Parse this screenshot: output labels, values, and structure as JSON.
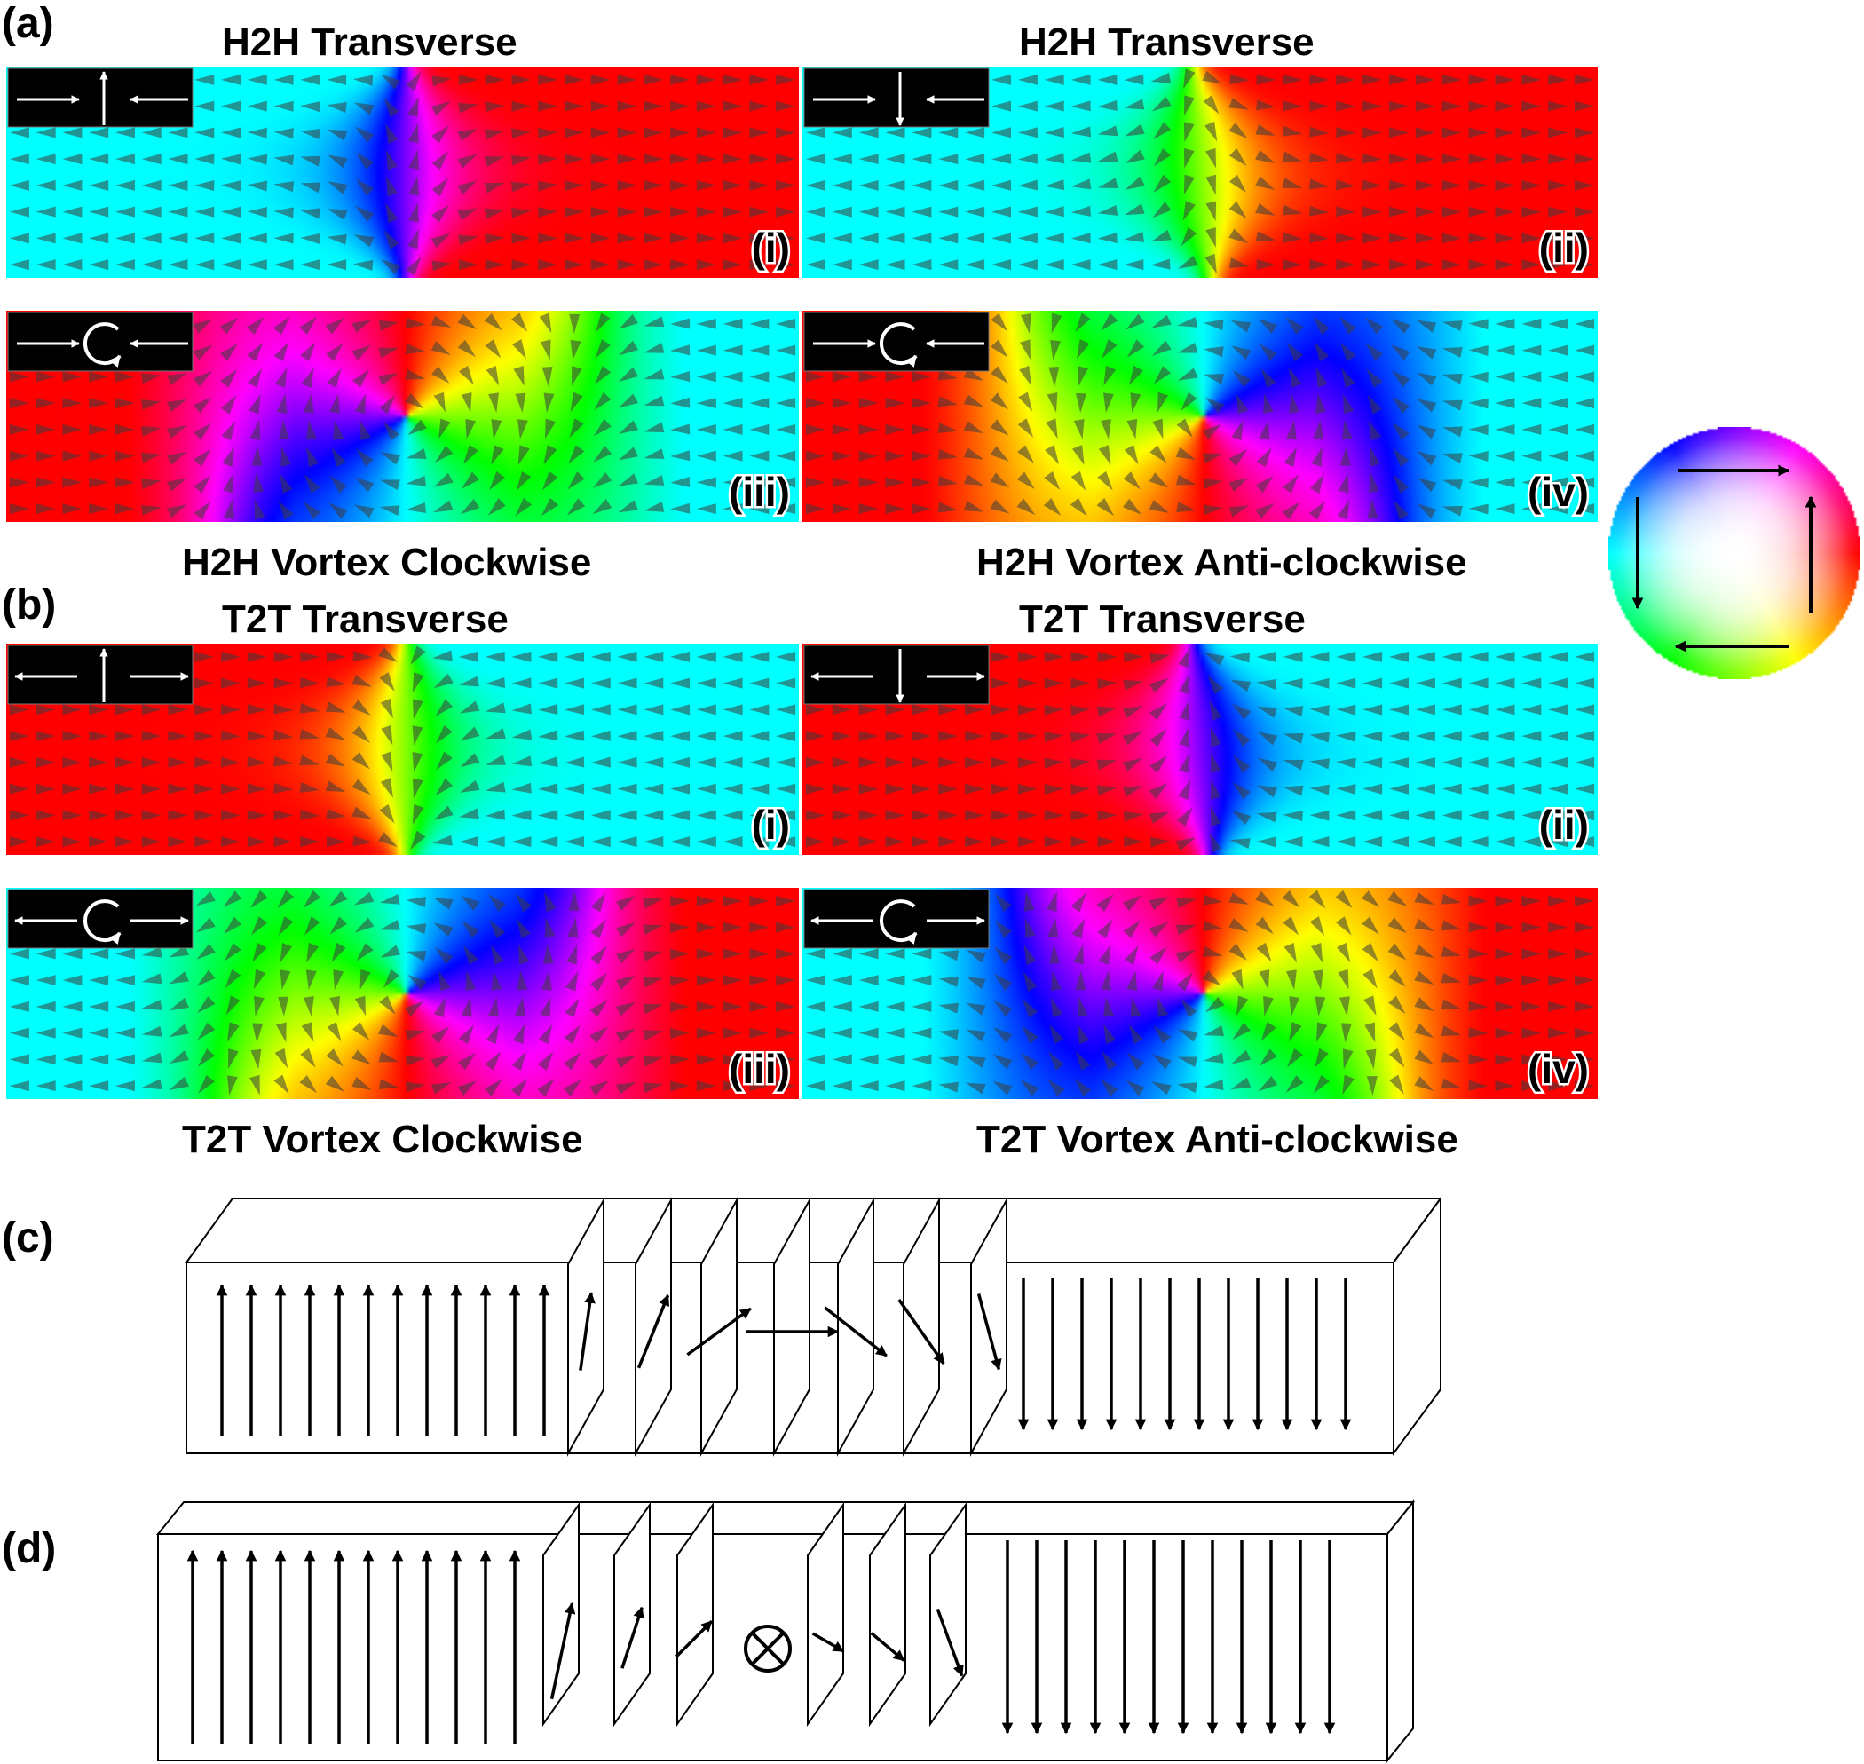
{
  "figure": {
    "panel_labels": {
      "a": "(a)",
      "b": "(b)",
      "c": "(c)",
      "d": "(d)"
    },
    "panel_a": {
      "maps": [
        {
          "title": "H2H Transverse",
          "roman": "(i)",
          "inset": "transverse-up",
          "kind": "tr",
          "flip": false,
          "dir": 1,
          "variant": 1
        },
        {
          "title": "H2H Transverse",
          "roman": "(ii)",
          "inset": "transverse-down",
          "kind": "tr",
          "flip": true,
          "dir": 1,
          "variant": 2
        },
        {
          "caption": "H2H Vortex Clockwise",
          "roman": "(iii)",
          "inset": "vortex-clockwise",
          "kind": "vx",
          "flip": false,
          "dir": 1,
          "variant": 3
        },
        {
          "caption": "H2H Vortex Anti-clockwise",
          "roman": "(iv)",
          "inset": "vortex-anticlockwise",
          "kind": "vx",
          "flip": true,
          "dir": 1,
          "variant": 4
        }
      ]
    },
    "panel_b": {
      "maps": [
        {
          "title": "T2T Transverse",
          "roman": "(i)",
          "inset": "transverse-up",
          "kind": "tr",
          "flip": false,
          "dir": -1,
          "variant": 1
        },
        {
          "title": "T2T Transverse",
          "roman": "(ii)",
          "inset": "transverse-down",
          "kind": "tr",
          "flip": true,
          "dir": -1,
          "variant": 2
        },
        {
          "caption": "T2T Vortex Clockwise",
          "roman": "(iii)",
          "inset": "vortex-clockwise",
          "kind": "vx",
          "flip": false,
          "dir": -1,
          "variant": 3
        },
        {
          "caption": "T2T Vortex Anti-clockwise",
          "roman": "(iv)",
          "inset": "vortex-anticlockwise",
          "kind": "vx",
          "flip": true,
          "dir": -1,
          "variant": 4
        }
      ]
    },
    "color_wheel": {
      "arrows": [
        "arrow-right",
        "arrow-up",
        "arrow-left",
        "arrow-down"
      ],
      "colors": {
        "right": "#ff0000",
        "up": "#ffff00",
        "left": "#00ffff",
        "down": "#0000ff"
      }
    },
    "panel_c": {
      "wall_type": "bloch-wall",
      "left_domain": "up",
      "right_domain": "down"
    },
    "panel_d": {
      "wall_type": "neel-wall",
      "center_symbol": "into-page-symbol",
      "left_domain": "up",
      "right_domain": "down"
    }
  }
}
